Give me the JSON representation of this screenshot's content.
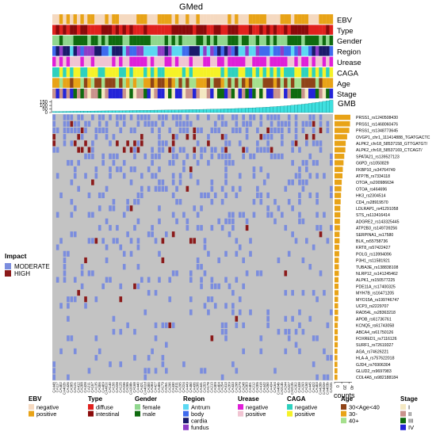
{
  "chart_data": {
    "type": "heatmap",
    "title": "GMed",
    "n_samples": 80,
    "sample_labels": [
      "CA448",
      "CA117",
      "CA402",
      "CA402b",
      "CA426",
      "CA305",
      "CA121",
      "CA412",
      "CA208",
      "CA428",
      "CA211",
      "CA157",
      "CA135",
      "CA306",
      "CA409",
      "CA402c",
      "CA140",
      "CA156",
      "CA228",
      "CA125",
      "CA236",
      "CA265",
      "CA208b",
      "CA168",
      "CA440",
      "CA421",
      "CA402d",
      "CA300",
      "CA283",
      "CA427",
      "CA406",
      "CA179",
      "CA251",
      "CA296",
      "CA430",
      "CA311",
      "CA295",
      "CA224",
      "CA449",
      "CA450",
      "CA436",
      "CA206",
      "CA441",
      "CA253",
      "CA178",
      "CA213",
      "CA309",
      "CA404",
      "CA254",
      "CA413",
      "CA209",
      "CA433",
      "CA298",
      "CA279",
      "CA248",
      "CA303",
      "CA401",
      "CA212",
      "CA205",
      "CA418",
      "CA442",
      "CA250",
      "CA434",
      "CA164",
      "CA404b",
      "CA213b",
      "CA244",
      "CA227",
      "CA212b",
      "CA202",
      "CA438",
      "CA293",
      "CA150",
      "CA445",
      "CA422",
      "CA403",
      "CA426b",
      "CA402e",
      "CA403b",
      "CA231"
    ],
    "annotation_tracks": [
      "EBV",
      "Type",
      "Gender",
      "Region",
      "Urease",
      "CAGA",
      "Age",
      "Stage"
    ],
    "gmb_track": {
      "label": "GMB",
      "axis_ticks": [
        0,
        50,
        100,
        150
      ],
      "ylim": [
        0,
        180
      ]
    },
    "genes": [
      "PRSS1_rs1240508430",
      "PRSS1_rs1468060476",
      "PRSS1_rs1348773645",
      "OVGP1_chr1_111414888_TGATGACTC",
      "ALPK2_chr18_58537158_GTTGATGT/",
      "ALPK2_chr18_58537169_CTCAGT/",
      "SPATA21_rs139527123",
      "G6PD_rs1050829",
      "FKBP10_rs34764749",
      "ATP7B_rs7334118",
      "OTOA_rs200986634",
      "OTOA_rs464696",
      "HK3_rs2304514",
      "CD4_rs28919570",
      "LDLRAP1_rs41291058",
      "STS_rs113416414",
      "ADGRE2_rs143325445",
      "ATP2B3_rs149739256",
      "SERPINA1_rs17580",
      "BLK_rs55758736",
      "KRT8_rs57422427",
      "POLG_rs13994096",
      "P3H1_rs11581921",
      "TUBA3E_rs138838108",
      "NLRP12_rs141245462",
      "ALPK1_rs150577225",
      "PDE11A_rs17400325",
      "MYH7B_rs16471205",
      "MYO15A_rs199746747",
      "UCP3_rs2229707",
      "RAD54L_rs28363218",
      "APOB_rs61736761",
      "KCNQ5_rs61743058",
      "ABCA4_rs61750126",
      "FOXRED1_rs7116126",
      "SURF1_rs72619327",
      "AGA_rs74626221",
      "HLA-A_rs757622018",
      "GJD4_rs76906304",
      "GLUD2_rs9697983",
      "COL4A5_rs982188184"
    ],
    "gene_counts": [
      44,
      43,
      41,
      35,
      31,
      30,
      27,
      25,
      23,
      22,
      20,
      19,
      18,
      17,
      16,
      16,
      15,
      15,
      14,
      14,
      13,
      13,
      12,
      12,
      12,
      11,
      11,
      11,
      10,
      10,
      10,
      10,
      9,
      9,
      9,
      9,
      8,
      8,
      8,
      8,
      8
    ],
    "counts_axis": {
      "label": "counts",
      "ticks": [
        0,
        20,
        40
      ]
    },
    "impact_legend": {
      "title": "Impact",
      "items": [
        {
          "label": "MODERATE",
          "color": "#7B8DDE"
        },
        {
          "label": "HIGH",
          "color": "#8B1A1A"
        }
      ]
    },
    "annotation_legends": [
      {
        "title": "EBV",
        "items": [
          {
            "label": "negative",
            "color": "#F5D9C0"
          },
          {
            "label": "positive",
            "color": "#E8A317"
          }
        ]
      },
      {
        "title": "Type",
        "items": [
          {
            "label": "diffuse",
            "color": "#E0211D"
          },
          {
            "label": "intestinal",
            "color": "#8B0A0A"
          }
        ]
      },
      {
        "title": "Gender",
        "items": [
          {
            "label": "female",
            "color": "#90D78E"
          },
          {
            "label": "male",
            "color": "#0F6B0F"
          }
        ]
      },
      {
        "title": "Region",
        "items": [
          {
            "label": "Antrum",
            "color": "#5BD8F2"
          },
          {
            "label": "body",
            "color": "#3F6BEE"
          },
          {
            "label": "cardia",
            "color": "#1A1A6B"
          },
          {
            "label": "fundus",
            "color": "#8E3DC7"
          }
        ]
      },
      {
        "title": "Urease",
        "items": [
          {
            "label": "negative",
            "color": "#E01FD8"
          },
          {
            "label": "positive",
            "color": "#F1C4D2"
          }
        ]
      },
      {
        "title": "CAGA",
        "items": [
          {
            "label": "negative",
            "color": "#2ED1BE"
          },
          {
            "label": "positive",
            "color": "#F5F227"
          }
        ]
      },
      {
        "title": "Age",
        "items": [
          {
            "label": "30<Age<40",
            "color": "#8F4418"
          },
          {
            "label": "30-",
            "color": "#E8A317"
          },
          {
            "label": "40+",
            "color": "#A5E08D"
          }
        ]
      },
      {
        "title": "Stage",
        "items": [
          {
            "label": "I",
            "color": "#F4E8C2"
          },
          {
            "label": "II",
            "color": "#C9928C"
          },
          {
            "label": "III",
            "color": "#0F6B0F"
          },
          {
            "label": "IV",
            "color": "#2424D8"
          }
        ]
      }
    ]
  }
}
